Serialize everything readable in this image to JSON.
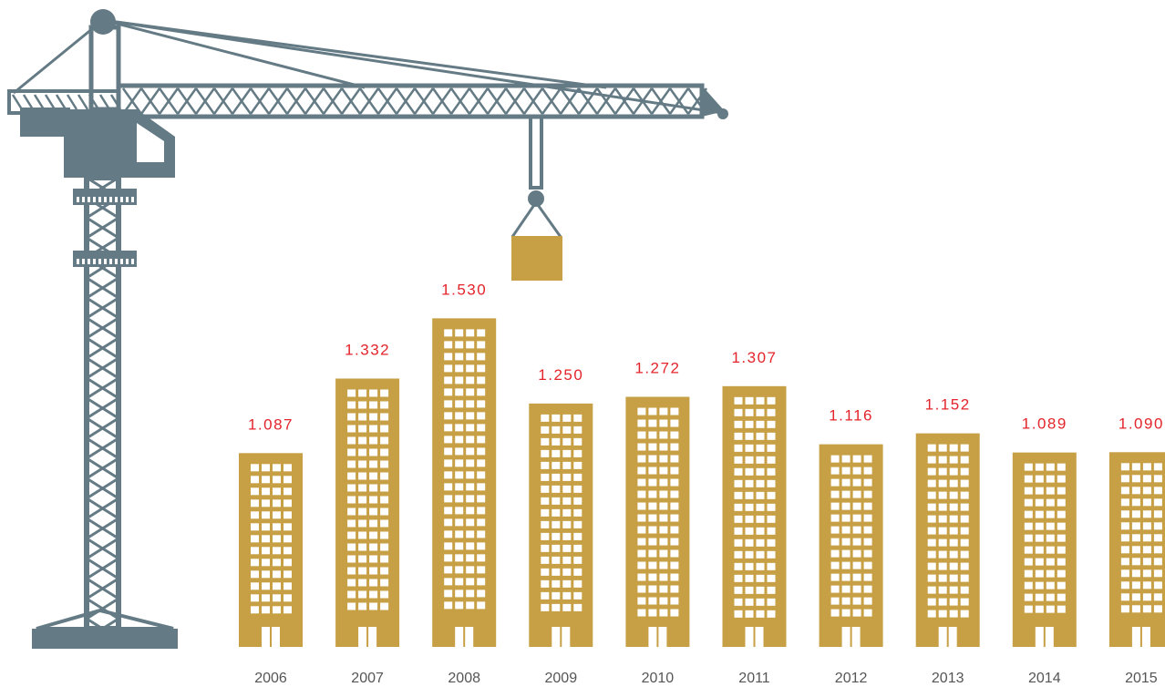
{
  "chart_data": {
    "type": "bar",
    "categories": [
      "2006",
      "2007",
      "2008",
      "2009",
      "2010",
      "2011",
      "2012",
      "2013",
      "2014",
      "2015"
    ],
    "values": [
      1.087,
      1.332,
      1.53,
      1.25,
      1.272,
      1.307,
      1.116,
      1.152,
      1.089,
      1.09
    ],
    "value_labels": [
      "1.087",
      "1.332",
      "1.530",
      "1.250",
      "1.272",
      "1.307",
      "1.116",
      "1.152",
      "1.089",
      "1.090"
    ],
    "color": "#c79f45",
    "ylim": [
      0.45,
      1.6
    ]
  }
}
